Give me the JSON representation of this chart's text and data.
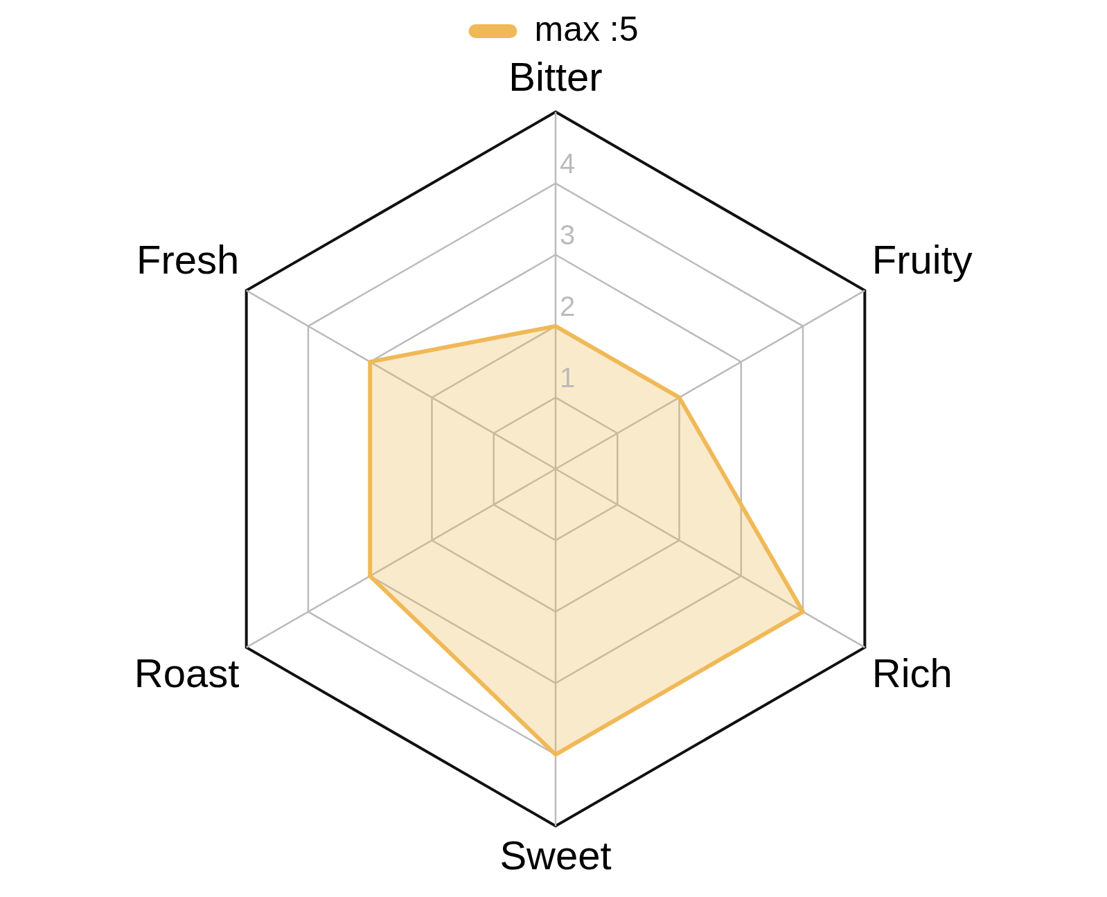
{
  "chart_data": {
    "type": "radar",
    "categories": [
      "Bitter",
      "Fruity",
      "Rich",
      "Sweet",
      "Roast",
      "Fresh"
    ],
    "series": [
      {
        "name": "max :5",
        "color": "#f0b957",
        "values": [
          2,
          2,
          4,
          4,
          3,
          3
        ]
      }
    ],
    "ylim": [
      0,
      5
    ],
    "yticks": [
      1,
      2,
      3,
      4
    ],
    "grid": true,
    "legend": "top"
  }
}
